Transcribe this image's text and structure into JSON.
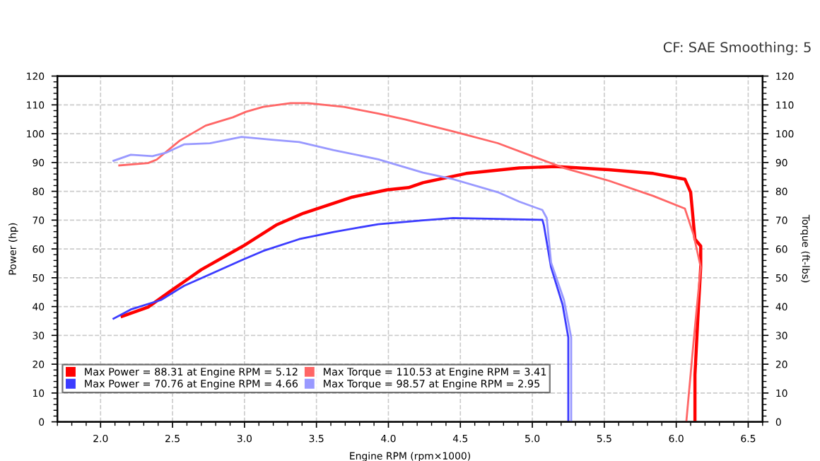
{
  "chart_data": {
    "type": "line",
    "xlabel": "Engine RPM (rpm×1000)",
    "ylabel": "Power (hp)",
    "y2label": "Torque (ft-lbs)",
    "annotations": [
      "CF: SAE Smoothing: 5"
    ],
    "xlim": [
      1.7,
      6.6
    ],
    "xticks": [
      {
        "value": 2.0,
        "label": "2.0"
      },
      {
        "value": 2.5,
        "label": "2.5"
      },
      {
        "value": 3.0,
        "label": "3.0"
      },
      {
        "value": 3.5,
        "label": "3.5"
      },
      {
        "value": 4.0,
        "label": "4.0"
      },
      {
        "value": 4.5,
        "label": "4.5"
      },
      {
        "value": 5.0,
        "label": "5.0"
      },
      {
        "value": 5.5,
        "label": "5.5"
      },
      {
        "value": 6.0,
        "label": "6.0"
      },
      {
        "value": 6.5,
        "label": "6.5"
      }
    ],
    "ylim": [
      0,
      120
    ],
    "yticks": [
      0,
      10,
      20,
      30,
      40,
      50,
      60,
      70,
      80,
      90,
      100,
      110,
      120
    ],
    "y2lim": [
      0,
      120
    ],
    "y2ticks": [
      0,
      10,
      20,
      30,
      40,
      50,
      60,
      70,
      80,
      90,
      100,
      110,
      120
    ],
    "grid": true,
    "legend": "bottom left",
    "marker": "none",
    "line_style": "solid",
    "series": [
      {
        "name": "Max Power = 88.31 at Engine RPM = 5.12",
        "color": "#ff0000",
        "x": [
          2.15,
          2.33,
          2.49,
          2.7,
          2.99,
          3.22,
          3.41,
          3.75,
          3.99,
          4.14,
          4.24,
          4.54,
          4.91,
          5.16,
          5.53,
          5.84,
          6.06,
          6.1,
          6.13,
          6.17,
          6.17,
          6.15,
          6.13,
          6.13
        ],
        "values": [
          36.6,
          39.8,
          45.5,
          52.8,
          61,
          68.3,
          72.4,
          78,
          80.5,
          81.3,
          83,
          86.2,
          88.1,
          88.6,
          87.5,
          86.2,
          84.2,
          79.7,
          63.4,
          61,
          53.7,
          35.8,
          16.3,
          0
        ]
      },
      {
        "name": "Max Power = 70.76 at Engine RPM = 4.66",
        "color": "#3c3cff",
        "x": [
          2.09,
          2.21,
          2.42,
          2.58,
          2.76,
          2.98,
          3.13,
          3.38,
          3.62,
          3.93,
          4.24,
          4.45,
          4.76,
          5.07,
          5.08,
          5.13,
          5.21,
          5.25,
          5.25,
          5.25
        ],
        "values": [
          35.8,
          39,
          42.3,
          47.2,
          51.2,
          56.1,
          59.3,
          63.4,
          65.9,
          68.6,
          69.9,
          70.7,
          70.4,
          70.1,
          68.3,
          53.7,
          40.7,
          29.3,
          13,
          0
        ]
      },
      {
        "name": "Max Torque = 110.53 at Engine RPM = 3.41",
        "color": "#ff6666",
        "axis": "y2",
        "x": [
          2.13,
          2.33,
          2.39,
          2.55,
          2.73,
          2.92,
          3.01,
          3.13,
          3.32,
          3.44,
          3.69,
          3.93,
          4.12,
          4.45,
          4.76,
          5.0,
          5.22,
          5.53,
          5.84,
          6.06,
          6.12,
          6.17,
          6.12,
          6.07
        ],
        "values": [
          89,
          89.8,
          91,
          97.6,
          102.8,
          105.7,
          107.6,
          109.3,
          110.6,
          110.6,
          109.3,
          107,
          104.9,
          100.8,
          96.7,
          92.2,
          88.1,
          83.7,
          78.4,
          74,
          65,
          53.7,
          27.6,
          0
        ]
      },
      {
        "name": "Max Torque = 98.57 at Engine RPM = 2.95",
        "color": "#9999ff",
        "axis": "y2",
        "x": [
          2.09,
          2.21,
          2.36,
          2.46,
          2.58,
          2.76,
          2.98,
          3.19,
          3.38,
          3.62,
          3.93,
          4.24,
          4.45,
          4.76,
          4.91,
          5.07,
          5.1,
          5.13,
          5.22,
          5.27,
          5.27
        ],
        "values": [
          90.6,
          92.7,
          92.2,
          93.5,
          96.3,
          96.7,
          98.9,
          97.9,
          97.1,
          94.3,
          91.1,
          86.5,
          84.2,
          79.7,
          76.4,
          73.5,
          70.7,
          55.3,
          42.3,
          29.3,
          0
        ]
      }
    ]
  }
}
